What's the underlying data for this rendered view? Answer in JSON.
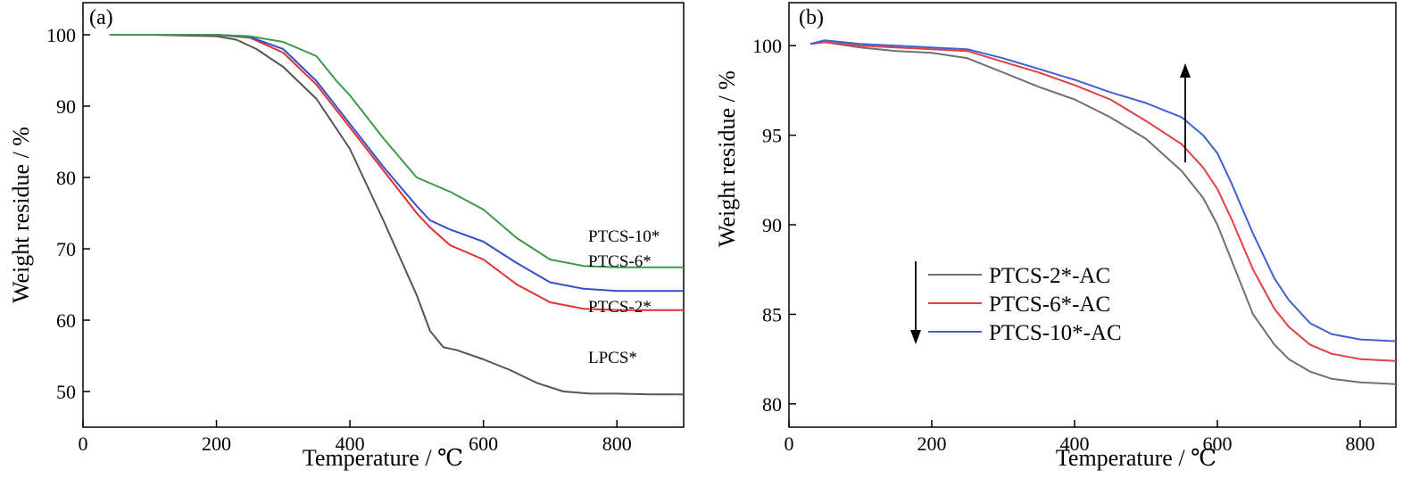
{
  "chart_data": [
    {
      "panel_label": "(a)",
      "type": "line",
      "xlabel": "Temperature / ℃",
      "ylabel": "Weight residue / %",
      "xlim": [
        0,
        900
      ],
      "ylim": [
        45,
        104.5
      ],
      "xticks": [
        0,
        200,
        400,
        600,
        800
      ],
      "yticks": [
        50,
        60,
        70,
        80,
        90,
        100
      ],
      "legend": "inline labels at curve ends",
      "series": [
        {
          "name": "LPCS*",
          "color": "#555555",
          "x": [
            40,
            100,
            200,
            230,
            260,
            300,
            350,
            400,
            450,
            500,
            520,
            540,
            560,
            600,
            640,
            680,
            720,
            760,
            800,
            850,
            900
          ],
          "y": [
            100,
            100,
            99.8,
            99.3,
            98,
            95.5,
            91,
            84,
            74,
            63.5,
            58.5,
            56.2,
            55.8,
            54.5,
            53,
            51.2,
            50,
            49.7,
            49.7,
            49.6,
            49.6
          ]
        },
        {
          "name": "PTCS-2*",
          "color": "#e03030",
          "x": [
            40,
            100,
            200,
            250,
            300,
            350,
            400,
            450,
            500,
            520,
            550,
            600,
            650,
            700,
            750,
            800,
            850,
            900
          ],
          "y": [
            100,
            100,
            100,
            99.6,
            97.5,
            93,
            87,
            81,
            75,
            73,
            70.5,
            68.5,
            65,
            62.5,
            61.6,
            61.4,
            61.4,
            61.4
          ]
        },
        {
          "name": "PTCS-6*",
          "color": "#3050d0",
          "x": [
            40,
            100,
            200,
            250,
            300,
            350,
            400,
            450,
            500,
            520,
            550,
            600,
            650,
            700,
            750,
            800,
            850,
            900
          ],
          "y": [
            100,
            100,
            100,
            99.7,
            98,
            93.5,
            87.5,
            81.5,
            76,
            74,
            72.7,
            71,
            68,
            65.3,
            64.4,
            64.1,
            64.1,
            64.1
          ]
        },
        {
          "name": "PTCS-10*",
          "color": "#3a9a4a",
          "x": [
            40,
            100,
            200,
            250,
            300,
            350,
            380,
            400,
            450,
            500,
            550,
            600,
            650,
            700,
            750,
            800,
            850,
            900
          ],
          "y": [
            100,
            100,
            100,
            99.8,
            99,
            97,
            93.5,
            91.5,
            85.5,
            80,
            78,
            75.5,
            71.5,
            68.5,
            67.6,
            67.4,
            67.4,
            67.4
          ]
        }
      ]
    },
    {
      "panel_label": "(b)",
      "type": "line",
      "xlabel": "Temperature / ℃",
      "ylabel": "Weight residue / %",
      "xlim": [
        0,
        850
      ],
      "ylim": [
        78.7,
        102.4
      ],
      "xticks": [
        0,
        200,
        400,
        600,
        800
      ],
      "yticks": [
        80,
        85,
        90,
        95,
        100
      ],
      "legend": "lower-left",
      "series": [
        {
          "name": "PTCS-2*-AC",
          "color": "#707070",
          "x": [
            30,
            50,
            100,
            150,
            200,
            250,
            300,
            350,
            400,
            450,
            500,
            550,
            580,
            600,
            620,
            650,
            680,
            700,
            730,
            760,
            800,
            850
          ],
          "y": [
            100.1,
            100.2,
            99.9,
            99.7,
            99.6,
            99.3,
            98.5,
            97.7,
            97,
            96,
            94.8,
            93,
            91.5,
            90,
            88,
            85,
            83.3,
            82.5,
            81.8,
            81.4,
            81.2,
            81.1
          ]
        },
        {
          "name": "PTCS-6*-AC",
          "color": "#e04040",
          "x": [
            30,
            50,
            100,
            150,
            200,
            250,
            300,
            350,
            400,
            450,
            500,
            550,
            580,
            600,
            620,
            650,
            680,
            700,
            730,
            760,
            800,
            850
          ],
          "y": [
            100.1,
            100.2,
            100,
            99.9,
            99.8,
            99.7,
            99.1,
            98.5,
            97.8,
            97,
            95.8,
            94.5,
            93.2,
            92,
            90.3,
            87.5,
            85.3,
            84.3,
            83.3,
            82.8,
            82.5,
            82.4
          ]
        },
        {
          "name": "PTCS-10*-AC",
          "color": "#4060d0",
          "x": [
            30,
            50,
            100,
            150,
            200,
            250,
            300,
            350,
            400,
            450,
            500,
            550,
            580,
            600,
            620,
            650,
            680,
            700,
            730,
            760,
            800,
            850
          ],
          "y": [
            100.1,
            100.3,
            100.1,
            100,
            99.9,
            99.8,
            99.3,
            98.7,
            98.1,
            97.4,
            96.8,
            96,
            95,
            94,
            92.3,
            89.5,
            87,
            85.8,
            84.5,
            83.9,
            83.6,
            83.5
          ]
        }
      ]
    }
  ]
}
